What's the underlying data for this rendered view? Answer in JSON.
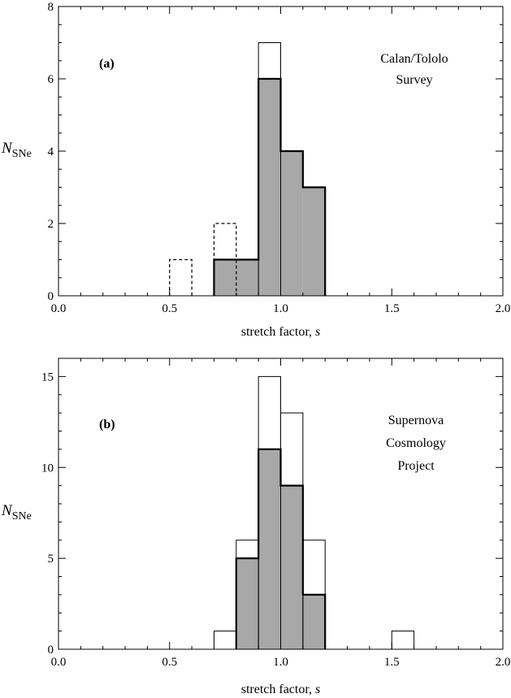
{
  "chart_data": [
    {
      "type": "bar",
      "panel_label": "(a)",
      "annotation": [
        "Calan/Tololo",
        "Survey"
      ],
      "xlabel": "stretch factor, ",
      "xlabel_symbol": "s",
      "ylabel": "N",
      "ylabel_sub": "SNe",
      "xlim": [
        0.0,
        2.0
      ],
      "ylim": [
        0,
        8
      ],
      "xticks": [
        "0.0",
        "0.5",
        "1.0",
        "1.5",
        "2.0"
      ],
      "yticks": [
        "0",
        "2",
        "4",
        "6",
        "8"
      ],
      "bin_width": 0.1,
      "series": [
        {
          "style": "thick-filled",
          "bins": [
            [
              0.7,
              1
            ],
            [
              0.8,
              1
            ],
            [
              0.9,
              6
            ],
            [
              1.0,
              4
            ],
            [
              1.1,
              3
            ]
          ]
        },
        {
          "style": "thin-outline",
          "bins": [
            [
              0.9,
              7
            ]
          ]
        },
        {
          "style": "dashed-outline",
          "bins": [
            [
              0.5,
              1
            ],
            [
              0.7,
              2
            ]
          ]
        }
      ]
    },
    {
      "type": "bar",
      "panel_label": "(b)",
      "annotation": [
        "Supernova",
        "Cosmology",
        "Project"
      ],
      "xlabel": "stretch factor, ",
      "xlabel_symbol": "s",
      "ylabel": "N",
      "ylabel_sub": "SNe",
      "xlim": [
        0.0,
        2.0
      ],
      "ylim": [
        0,
        16
      ],
      "xticks": [
        "0.0",
        "0.5",
        "1.0",
        "1.5",
        "2.0"
      ],
      "yticks": [
        "0",
        "5",
        "10",
        "15"
      ],
      "ytick_values": [
        0,
        5,
        10,
        15
      ],
      "bin_width": 0.1,
      "series": [
        {
          "style": "thick-filled",
          "bins": [
            [
              0.8,
              5
            ],
            [
              0.9,
              11
            ],
            [
              1.0,
              9
            ],
            [
              1.1,
              3
            ]
          ]
        },
        {
          "style": "thin-outline",
          "bins": [
            [
              0.7,
              1
            ],
            [
              0.8,
              6
            ],
            [
              0.9,
              15
            ],
            [
              1.0,
              13
            ],
            [
              1.1,
              6
            ],
            [
              1.5,
              1
            ]
          ]
        }
      ]
    }
  ]
}
